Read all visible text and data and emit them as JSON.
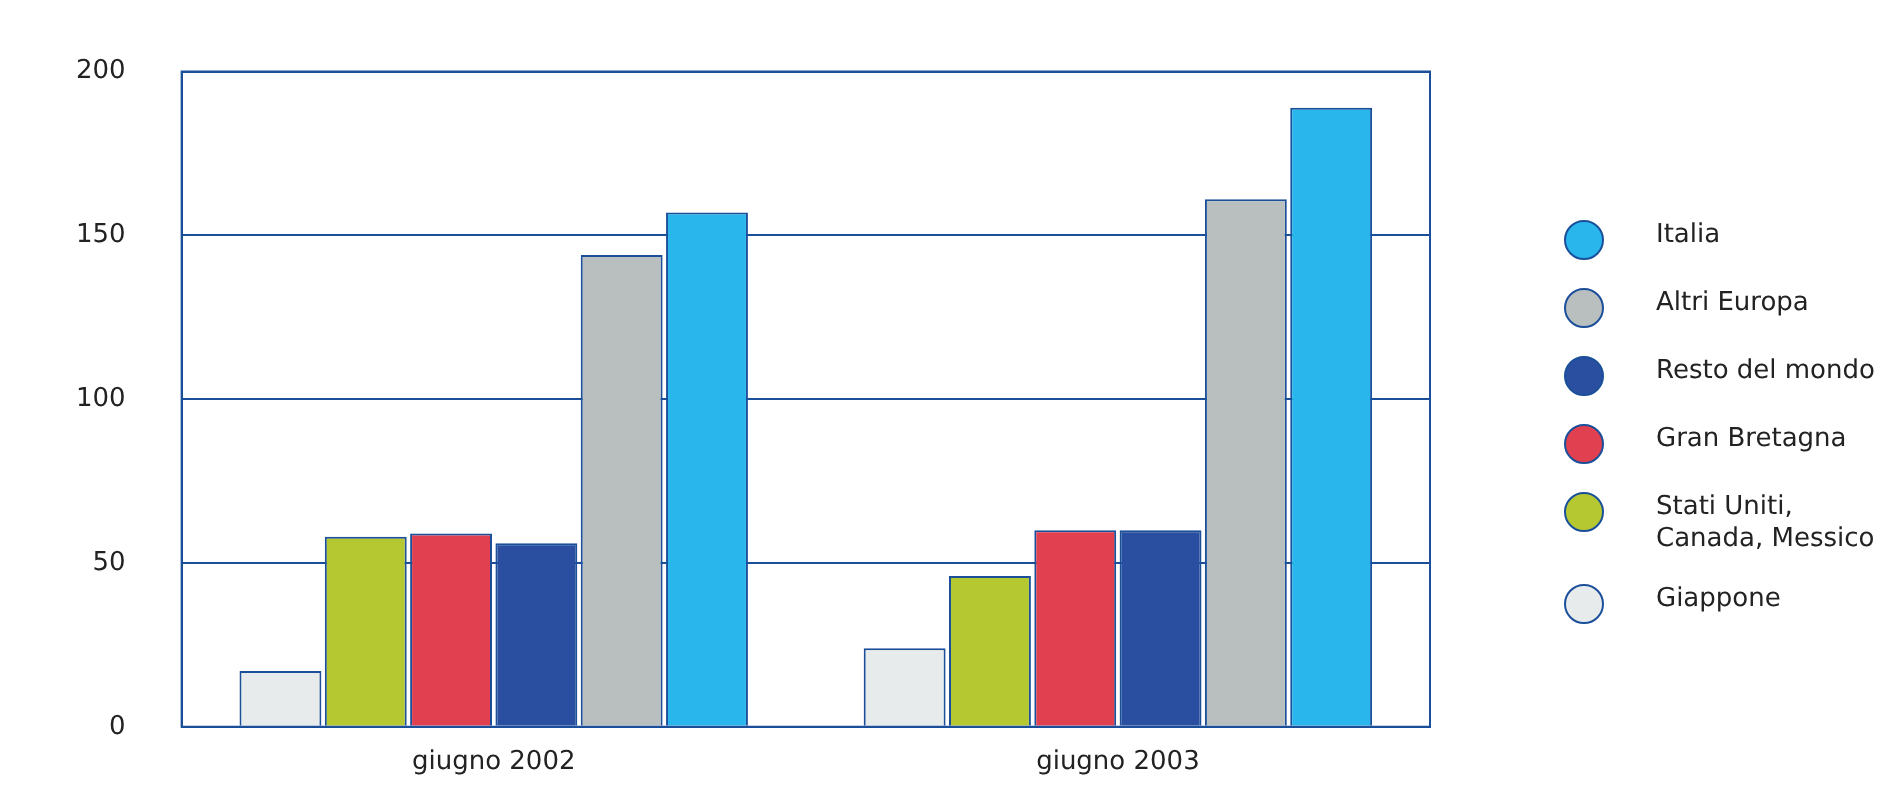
{
  "chart_data": {
    "type": "bar",
    "categories": [
      "giugno 2002",
      "giugno 2003"
    ],
    "series": [
      {
        "name": "Giappone",
        "color": "#e8ebeb",
        "values": [
          17,
          24
        ]
      },
      {
        "name": "Stati Uniti, Canada, Messico",
        "color": "#b5c832",
        "values": [
          58,
          46
        ]
      },
      {
        "name": "Gran Bretagna",
        "color": "#e0404f",
        "values": [
          59,
          60
        ]
      },
      {
        "name": "Resto del mondo",
        "color": "#2a4fa0",
        "values": [
          56,
          60
        ]
      },
      {
        "name": "Altri Europa",
        "color": "#b9bfbf",
        "values": [
          144,
          161
        ]
      },
      {
        "name": "Italia",
        "color": "#29b6ec",
        "values": [
          157,
          189
        ]
      }
    ],
    "ylim": [
      0,
      200
    ],
    "yticks": [
      0,
      50,
      100,
      150,
      200
    ],
    "grid": "y",
    "legend": "right"
  }
}
